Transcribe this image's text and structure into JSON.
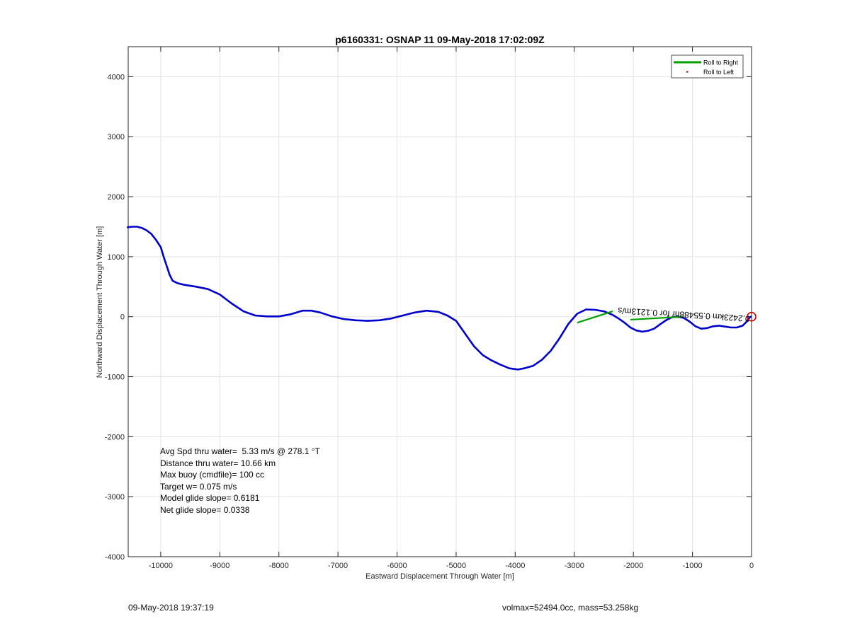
{
  "chart_data": {
    "type": "line",
    "title": "p6160331: OSNAP 11 09-May-2018 17:02:09Z",
    "xlabel": "Eastward Displacement Through Water [m]",
    "ylabel": "Northward Displacement Through Water [m]",
    "xlim": [
      -10550,
      0
    ],
    "ylim": [
      -4000,
      4500
    ],
    "xticks": [
      -10000,
      -9000,
      -8000,
      -7000,
      -6000,
      -5000,
      -4000,
      -3000,
      -2000,
      -1000,
      0
    ],
    "yticks": [
      -4000,
      -3000,
      -2000,
      -1000,
      0,
      1000,
      2000,
      3000,
      4000
    ],
    "grid": true,
    "legend_position": "top-right",
    "legend": [
      {
        "label": "Roll to Right",
        "color": "#00a000",
        "marker": "line"
      },
      {
        "label": "Roll to Left",
        "color": "#ff0000",
        "marker": "dot"
      }
    ],
    "series": [
      {
        "color": "#0000cc",
        "x": [
          -10560,
          -10480,
          -10400,
          -10320,
          -10240,
          -10160,
          -10080,
          -10000,
          -9950,
          -9900,
          -9850,
          -9800,
          -9720,
          -9600,
          -9400,
          -9200,
          -9000,
          -8800,
          -8600,
          -8400,
          -8200,
          -8000,
          -7800,
          -7600,
          -7450,
          -7300,
          -7100,
          -6900,
          -6700,
          -6500,
          -6300,
          -6100,
          -5900,
          -5700,
          -5500,
          -5300,
          -5150,
          -5000,
          -4850,
          -4700,
          -4550,
          -4400,
          -4250,
          -4100,
          -3950,
          -3850,
          -3700,
          -3550,
          -3400,
          -3250,
          -3100,
          -2950,
          -2800,
          -2650,
          -2500,
          -2350,
          -2250,
          -2150,
          -2050,
          -1950,
          -1850,
          -1750,
          -1650,
          -1550,
          -1450,
          -1350,
          -1250,
          -1150,
          -1050,
          -950,
          -850,
          -750,
          -650,
          -550,
          -450,
          -350,
          -250,
          -150,
          -80,
          -40,
          -10
        ],
        "y": [
          1490,
          1500,
          1500,
          1480,
          1440,
          1380,
          1280,
          1160,
          1000,
          850,
          700,
          600,
          560,
          530,
          500,
          460,
          370,
          220,
          90,
          20,
          5,
          5,
          40,
          100,
          100,
          70,
          5,
          -40,
          -60,
          -70,
          -60,
          -30,
          20,
          70,
          100,
          80,
          20,
          -70,
          -280,
          -490,
          -640,
          -730,
          -800,
          -860,
          -880,
          -860,
          -820,
          -720,
          -570,
          -360,
          -120,
          50,
          120,
          115,
          90,
          30,
          -30,
          -100,
          -180,
          -230,
          -250,
          -235,
          -200,
          -130,
          -60,
          -10,
          0,
          -20,
          -80,
          -160,
          -200,
          -190,
          -160,
          -150,
          -165,
          -180,
          -180,
          -150,
          -80,
          -20,
          0
        ]
      }
    ],
    "roll_right_segments": [
      {
        "x": [
          -2950,
          -2350
        ],
        "y": [
          -100,
          90
        ]
      },
      {
        "x": [
          -2050,
          -1150
        ],
        "y": [
          -50,
          0
        ]
      }
    ],
    "end_marker": {
      "x": 0,
      "y": 0,
      "color": "#d00000"
    },
    "annotation_label": "0.2423km 0.55488hr for 0.1213m/s",
    "stats": [
      "Avg Spd thru water=  5.33 m/s @ 278.1 °T",
      "Distance thru water= 10.66 km",
      "Max buoy (cmdfile)= 100 cc",
      "Target w= 0.075 m/s",
      "Model glide slope= 0.6181",
      "Net glide slope= 0.0338"
    ]
  },
  "footer": {
    "timestamp": "09-May-2018 19:37:19",
    "vol_mass": "volmax=52494.0cc, mass=53.258kg"
  }
}
